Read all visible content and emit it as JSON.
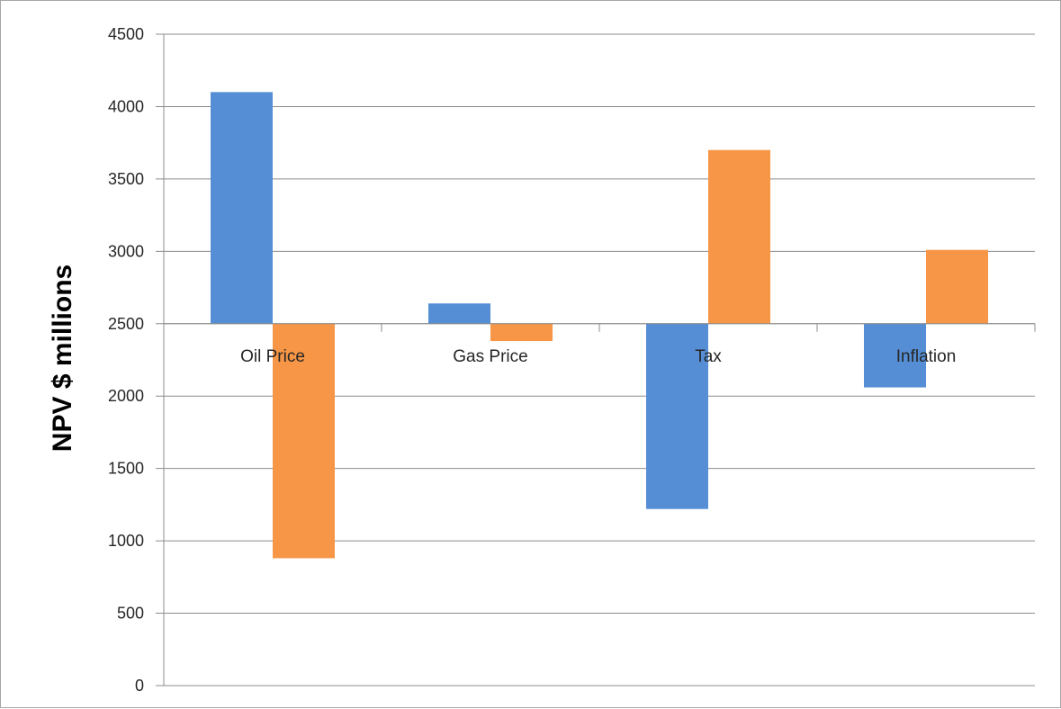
{
  "chart_data": {
    "type": "bar",
    "baseline": 2500,
    "categories": [
      "Oil Price",
      "Gas Price",
      "Tax",
      "Inflation"
    ],
    "series": [
      {
        "values": [
          4100,
          2640,
          1220,
          2060
        ],
        "color": "#558ed5"
      },
      {
        "values": [
          880,
          2380,
          3700,
          3010
        ],
        "color": "#f79646"
      }
    ],
    "ylabel": "NPV $ millions",
    "xlabel": "",
    "title": "",
    "ylim": [
      0,
      4500
    ],
    "yticks": [
      0,
      500,
      1000,
      1500,
      2000,
      2500,
      3000,
      3500,
      4000,
      4500
    ],
    "grid": true,
    "legend": "none"
  }
}
